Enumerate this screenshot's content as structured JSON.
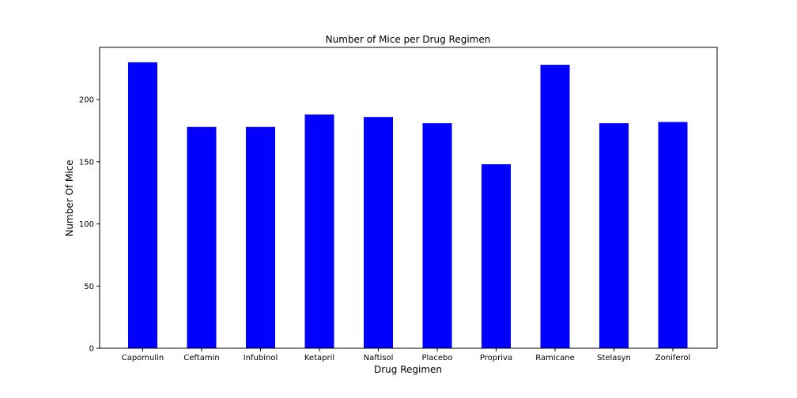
{
  "chart_data": {
    "type": "bar",
    "title": "Number of Mice per Drug Regimen",
    "xlabel": "Drug Regimen",
    "ylabel": "Number Of Mice",
    "categories": [
      "Capomulin",
      "Ceftamin",
      "Infubinol",
      "Ketapril",
      "Naftisol",
      "Placebo",
      "Propriva",
      "Ramicane",
      "Stelasyn",
      "Zoniferol"
    ],
    "values": [
      230,
      178,
      178,
      188,
      186,
      181,
      148,
      228,
      181,
      182
    ],
    "ylim": [
      0,
      242
    ],
    "yticks": [
      0,
      50,
      100,
      150,
      200
    ],
    "bar_color": "#0000ff",
    "grid": false,
    "legend": "none"
  }
}
